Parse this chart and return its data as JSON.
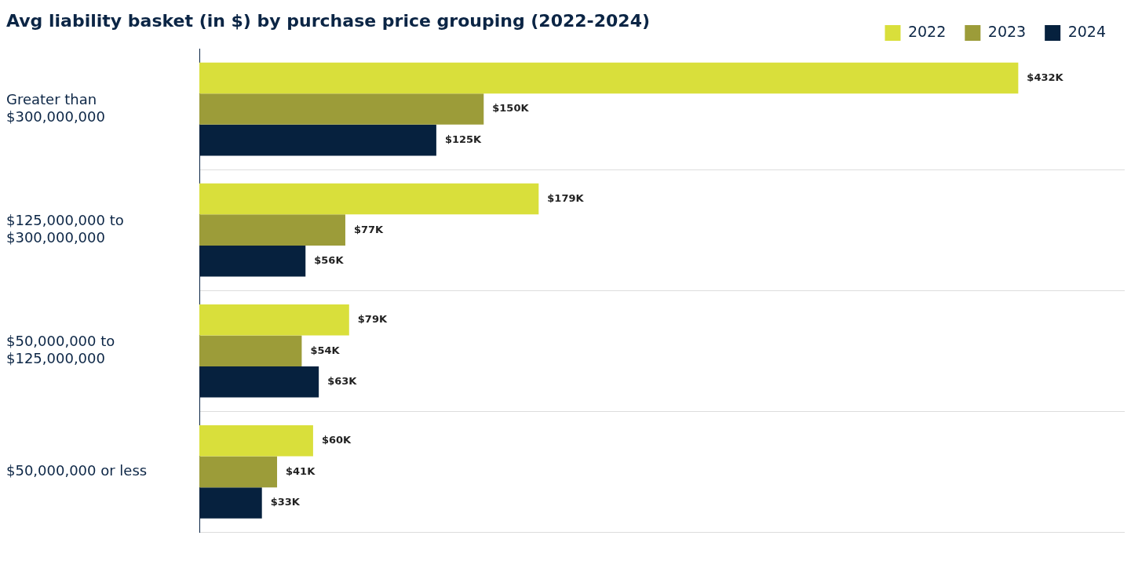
{
  "chart_data": {
    "type": "bar",
    "orientation": "horizontal",
    "title": "Avg liability basket (in $) by purchase price grouping (2022-2024)",
    "categories": [
      "Greater than $300,000,000",
      "$125,000,000 to $300,000,000",
      "$50,000,000 to $125,000,000",
      "$50,000,000 or less"
    ],
    "series": [
      {
        "name": "2022",
        "color": "#d9df3b",
        "values": [
          432,
          179,
          79,
          60
        ],
        "value_labels": [
          "$432K",
          "$179K",
          "$79K",
          "$60K"
        ]
      },
      {
        "name": "2023",
        "color": "#9c9c39",
        "values": [
          150,
          77,
          54,
          41
        ],
        "value_labels": [
          "$150K",
          "$77K",
          "$54K",
          "$41K"
        ]
      },
      {
        "name": "2024",
        "color": "#06213e",
        "values": [
          125,
          56,
          63,
          33
        ],
        "value_labels": [
          "$125K",
          "$56K",
          "$63K",
          "$33K"
        ]
      }
    ],
    "legend": "top right",
    "grid": "y"
  }
}
